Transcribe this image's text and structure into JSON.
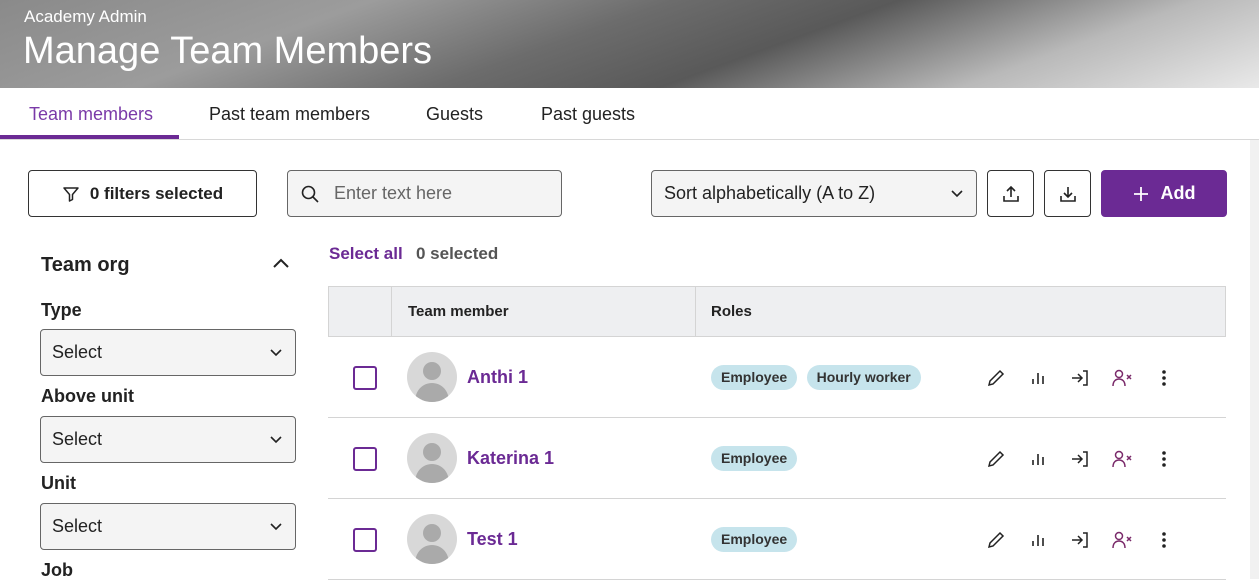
{
  "header": {
    "subtitle": "Academy Admin",
    "title": "Manage Team Members"
  },
  "tabs": [
    {
      "label": "Team members",
      "active": true
    },
    {
      "label": "Past team members"
    },
    {
      "label": "Guests"
    },
    {
      "label": "Past guests"
    }
  ],
  "toolbar": {
    "filters_label": "0 filters selected",
    "search_placeholder": "Enter text here",
    "sort_value": "Sort alphabetically (A to Z)",
    "add_label": "Add"
  },
  "filters": {
    "section_title": "Team org",
    "fields": [
      {
        "label": "Type",
        "value": "Select"
      },
      {
        "label": "Above unit",
        "value": "Select"
      },
      {
        "label": "Unit",
        "value": "Select"
      },
      {
        "label": "Job"
      }
    ]
  },
  "selection": {
    "select_all": "Select all",
    "selected": "0 selected"
  },
  "table": {
    "columns": [
      "Team member",
      "Roles"
    ],
    "rows": [
      {
        "name": "Anthi 1",
        "roles": [
          "Employee",
          "Hourly worker"
        ]
      },
      {
        "name": "Katerina 1",
        "roles": [
          "Employee"
        ]
      },
      {
        "name": "Test 1",
        "roles": [
          "Employee"
        ]
      }
    ]
  },
  "colors": {
    "accent": "#6b2a94",
    "badge": "#c6e4ec"
  }
}
